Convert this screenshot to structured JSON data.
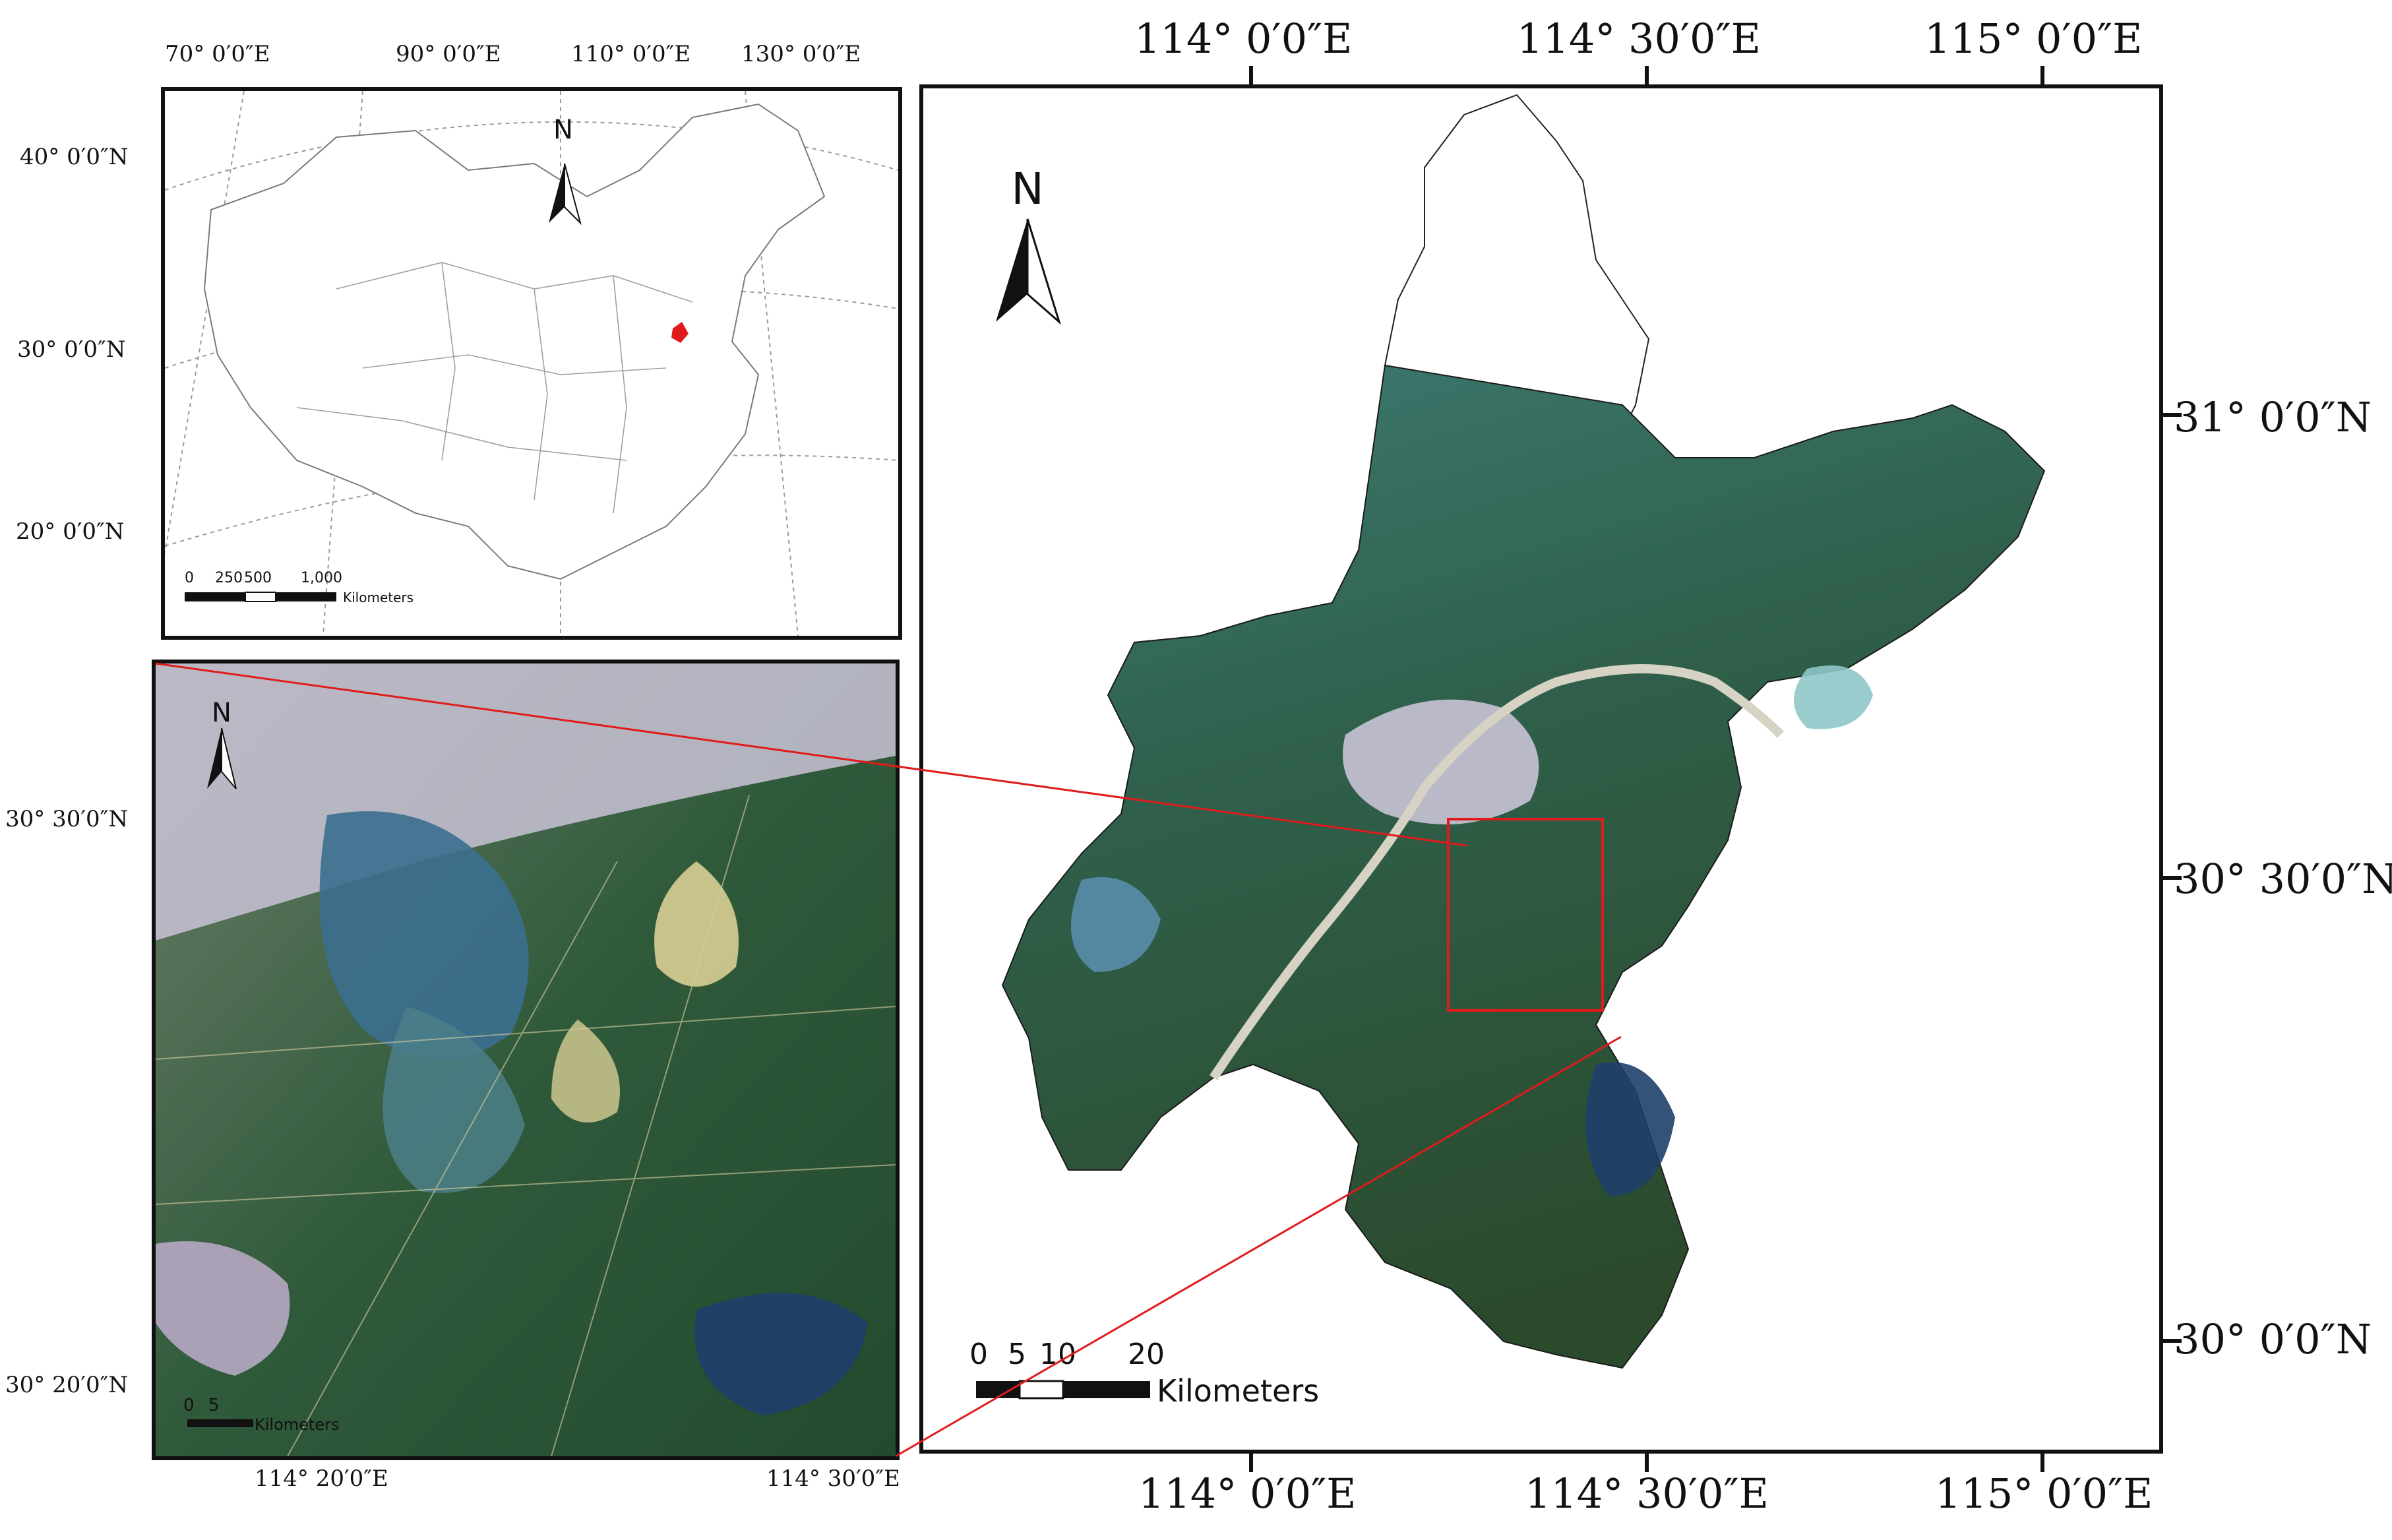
{
  "china_map": {
    "top_ticks": [
      "70°  0′0″E",
      "90°  0′0″E",
      "110°  0′0″E",
      "130°  0′0″E"
    ],
    "left_ticks": [
      "40°  0′0″N",
      "30°  0′0″N",
      "20°  0′0″N"
    ],
    "north_label": "N",
    "scale_numbers": [
      "0",
      "250",
      "500",
      "1,000"
    ],
    "scale_unit": "Kilometers"
  },
  "study_map": {
    "left_ticks": [
      "30°  30′0″N",
      "30°  20′0″N"
    ],
    "bottom_ticks": [
      "114°  20′0″E",
      "114°  30′0″E"
    ],
    "north_label": "N",
    "scale_numbers": [
      "0",
      "5"
    ],
    "scale_unit": "Kilometers"
  },
  "main_map": {
    "top_ticks": [
      "114°  0′0″E",
      "114°  30′0″E",
      "115°  0′0″E"
    ],
    "bottom_ticks": [
      "114°  0′0″E",
      "114°  30′0″E",
      "115°  0′0″E"
    ],
    "right_ticks": [
      "31°  0′0″N",
      "30°  30′0″N",
      "30°  0′0″N"
    ],
    "north_label": "N",
    "scale_numbers": [
      "0",
      "5",
      "10",
      "20"
    ],
    "scale_unit": "Kilometers"
  },
  "colors": {
    "vegetation": "#2f5a3a",
    "water": "#3b6f8f",
    "urban": "#c9c3d6",
    "highlight": "#e01b1b"
  }
}
